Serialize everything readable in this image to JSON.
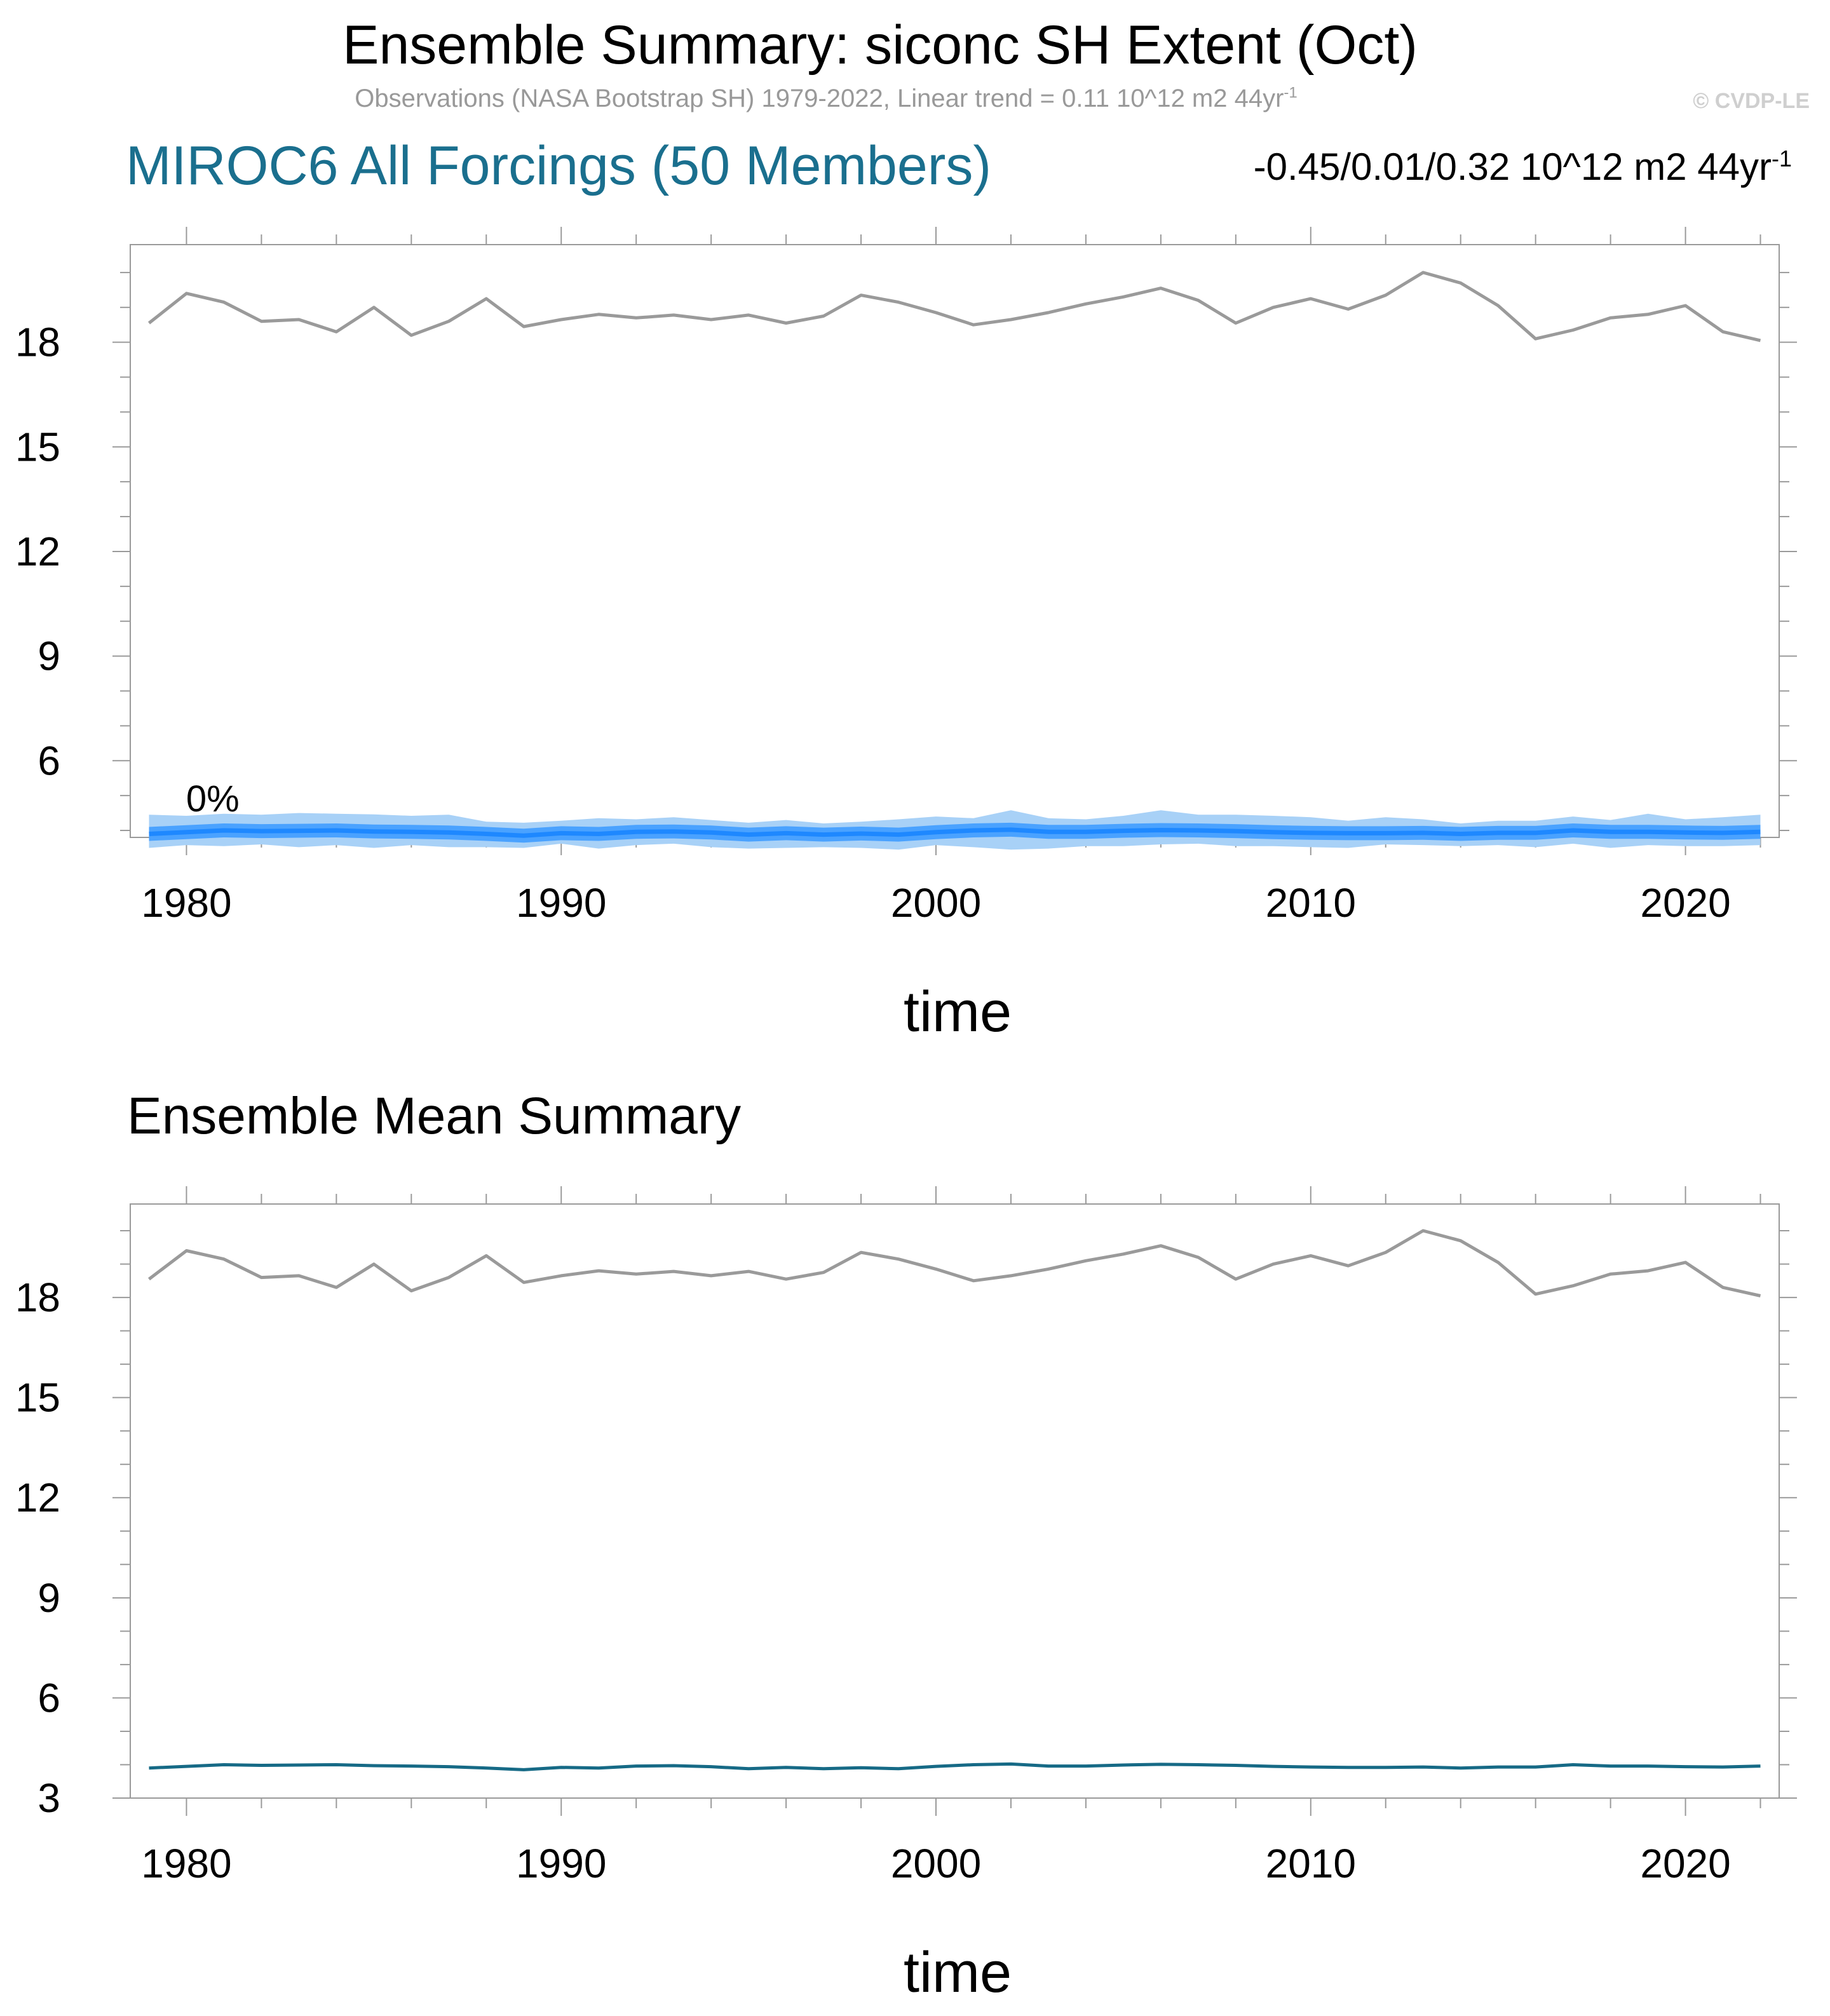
{
  "title": "Ensemble Summary: siconc SH Extent (Oct)",
  "subtitle": {
    "text": "Observations (NASA Bootstrap SH) 1979-2022, Linear trend = 0.11 10^12 m2 44yr",
    "sup": "-1"
  },
  "watermark": "© CVDP-LE",
  "colors": {
    "obs": "#9a9a9a",
    "ens_mean": "#1e88ff",
    "band_inner": "#4aa2ff",
    "band_outer": "#a8d1f7",
    "panel2_mean": "#166a86",
    "title_accent": "#1a6f8e"
  },
  "panels": [
    {
      "left_title": "MIROC6 All Forcings (50 Members)",
      "right_title": {
        "text": "-0.45/0.01/0.32 10^12 m2 44yr",
        "sup": "-1"
      },
      "annotation": "0%",
      "xlabel": "time"
    },
    {
      "left_title": "Ensemble Mean Summary",
      "xlabel": "time"
    }
  ],
  "chart_data": [
    {
      "type": "line",
      "xlabel": "time",
      "ylabel": "",
      "xlim": [
        1978.5,
        2022.5
      ],
      "ylim": [
        3.8,
        20.8
      ],
      "x_ticks": [
        1980,
        1990,
        2000,
        2010,
        2020
      ],
      "y_ticks": [
        6,
        9,
        12,
        15,
        18
      ],
      "x": [
        1979,
        1980,
        1981,
        1982,
        1983,
        1984,
        1985,
        1986,
        1987,
        1988,
        1989,
        1990,
        1991,
        1992,
        1993,
        1994,
        1995,
        1996,
        1997,
        1998,
        1999,
        2000,
        2001,
        2002,
        2003,
        2004,
        2005,
        2006,
        2007,
        2008,
        2009,
        2010,
        2011,
        2012,
        2013,
        2014,
        2015,
        2016,
        2017,
        2018,
        2019,
        2020,
        2021,
        2022
      ],
      "series": [
        {
          "role": "observations",
          "values": [
            18.55,
            19.4,
            19.15,
            18.6,
            18.65,
            18.3,
            19.0,
            18.2,
            18.6,
            19.25,
            18.45,
            18.65,
            18.8,
            18.7,
            18.78,
            18.65,
            18.78,
            18.55,
            18.75,
            19.35,
            19.15,
            18.85,
            18.5,
            18.65,
            18.85,
            19.1,
            19.3,
            19.55,
            19.2,
            18.55,
            19.0,
            19.25,
            18.95,
            19.35,
            20.0,
            19.7,
            19.05,
            18.1,
            18.35,
            18.7,
            18.8,
            19.05,
            18.3,
            18.05
          ]
        },
        {
          "role": "ensemble_mean",
          "values": [
            3.9,
            3.95,
            4.0,
            3.98,
            3.99,
            4.0,
            3.97,
            3.96,
            3.94,
            3.9,
            3.85,
            3.92,
            3.9,
            3.96,
            3.97,
            3.94,
            3.88,
            3.92,
            3.88,
            3.91,
            3.88,
            3.95,
            4.0,
            4.02,
            3.96,
            3.96,
            3.99,
            4.01,
            4.0,
            3.98,
            3.95,
            3.93,
            3.92,
            3.92,
            3.93,
            3.9,
            3.93,
            3.93,
            4.0,
            3.96,
            3.96,
            3.94,
            3.93,
            3.96
          ]
        },
        {
          "role": "spread_inner_upper",
          "values": [
            4.1,
            4.15,
            4.2,
            4.18,
            4.19,
            4.2,
            4.17,
            4.16,
            4.14,
            4.1,
            4.05,
            4.12,
            4.1,
            4.16,
            4.17,
            4.14,
            4.08,
            4.12,
            4.08,
            4.11,
            4.08,
            4.15,
            4.2,
            4.22,
            4.16,
            4.16,
            4.19,
            4.21,
            4.2,
            4.18,
            4.15,
            4.13,
            4.12,
            4.12,
            4.13,
            4.1,
            4.13,
            4.13,
            4.2,
            4.16,
            4.16,
            4.14,
            4.13,
            4.16
          ]
        },
        {
          "role": "spread_inner_lower",
          "values": [
            3.7,
            3.75,
            3.8,
            3.78,
            3.79,
            3.8,
            3.77,
            3.76,
            3.74,
            3.7,
            3.65,
            3.72,
            3.7,
            3.76,
            3.77,
            3.74,
            3.68,
            3.72,
            3.68,
            3.71,
            3.68,
            3.75,
            3.8,
            3.82,
            3.76,
            3.76,
            3.79,
            3.81,
            3.8,
            3.78,
            3.75,
            3.73,
            3.72,
            3.72,
            3.73,
            3.7,
            3.73,
            3.73,
            3.8,
            3.76,
            3.76,
            3.74,
            3.73,
            3.76
          ]
        },
        {
          "role": "spread_outer_upper",
          "values": [
            4.45,
            4.42,
            4.48,
            4.45,
            4.5,
            4.48,
            4.46,
            4.42,
            4.45,
            4.25,
            4.22,
            4.28,
            4.35,
            4.32,
            4.38,
            4.3,
            4.22,
            4.3,
            4.2,
            4.25,
            4.32,
            4.4,
            4.35,
            4.58,
            4.35,
            4.32,
            4.42,
            4.58,
            4.45,
            4.45,
            4.42,
            4.38,
            4.28,
            4.38,
            4.32,
            4.2,
            4.28,
            4.28,
            4.4,
            4.3,
            4.48,
            4.32,
            4.38,
            4.45
          ]
        },
        {
          "role": "spread_outer_lower",
          "values": [
            3.5,
            3.58,
            3.55,
            3.6,
            3.52,
            3.58,
            3.5,
            3.58,
            3.52,
            3.52,
            3.5,
            3.62,
            3.48,
            3.58,
            3.62,
            3.52,
            3.48,
            3.5,
            3.52,
            3.5,
            3.45,
            3.58,
            3.52,
            3.45,
            3.48,
            3.55,
            3.55,
            3.6,
            3.62,
            3.55,
            3.55,
            3.52,
            3.5,
            3.6,
            3.58,
            3.55,
            3.58,
            3.52,
            3.62,
            3.5,
            3.58,
            3.55,
            3.55,
            3.58
          ]
        }
      ]
    },
    {
      "type": "line",
      "xlabel": "time",
      "ylabel": "",
      "xlim": [
        1978.5,
        2022.5
      ],
      "ylim": [
        3,
        20.8
      ],
      "x_ticks": [
        1980,
        1990,
        2000,
        2010,
        2020
      ],
      "y_ticks": [
        3,
        6,
        9,
        12,
        15,
        18
      ],
      "x": [
        1979,
        1980,
        1981,
        1982,
        1983,
        1984,
        1985,
        1986,
        1987,
        1988,
        1989,
        1990,
        1991,
        1992,
        1993,
        1994,
        1995,
        1996,
        1997,
        1998,
        1999,
        2000,
        2001,
        2002,
        2003,
        2004,
        2005,
        2006,
        2007,
        2008,
        2009,
        2010,
        2011,
        2012,
        2013,
        2014,
        2015,
        2016,
        2017,
        2018,
        2019,
        2020,
        2021,
        2022
      ],
      "series": [
        {
          "role": "observations",
          "values": [
            18.55,
            19.4,
            19.15,
            18.6,
            18.65,
            18.3,
            19.0,
            18.2,
            18.6,
            19.25,
            18.45,
            18.65,
            18.8,
            18.7,
            18.78,
            18.65,
            18.78,
            18.55,
            18.75,
            19.35,
            19.15,
            18.85,
            18.5,
            18.65,
            18.85,
            19.1,
            19.3,
            19.55,
            19.2,
            18.55,
            19.0,
            19.25,
            18.95,
            19.35,
            20.0,
            19.7,
            19.05,
            18.1,
            18.35,
            18.7,
            18.8,
            19.05,
            18.3,
            18.05
          ]
        },
        {
          "role": "ensemble_mean",
          "values": [
            3.9,
            3.95,
            4.0,
            3.98,
            3.99,
            4.0,
            3.97,
            3.96,
            3.94,
            3.9,
            3.85,
            3.92,
            3.9,
            3.96,
            3.97,
            3.94,
            3.88,
            3.92,
            3.88,
            3.91,
            3.88,
            3.95,
            4.0,
            4.02,
            3.96,
            3.96,
            3.99,
            4.01,
            4.0,
            3.98,
            3.95,
            3.93,
            3.92,
            3.92,
            3.93,
            3.9,
            3.93,
            3.93,
            4.0,
            3.96,
            3.96,
            3.94,
            3.93,
            3.96
          ]
        }
      ]
    }
  ]
}
